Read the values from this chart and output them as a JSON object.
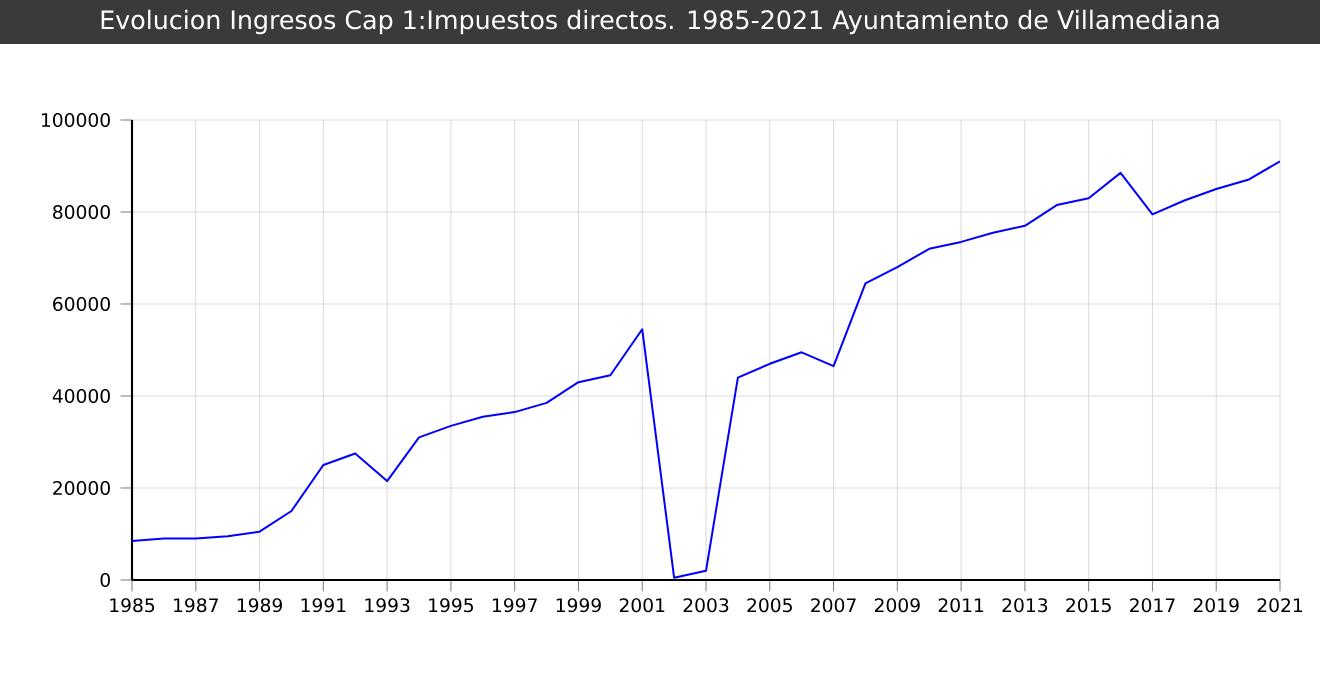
{
  "chart_data": {
    "type": "line",
    "title": "Evolucion Ingresos Cap 1:Impuestos directos. 1985-2021 Ayuntamiento de Villamediana",
    "x": [
      1985,
      1986,
      1987,
      1988,
      1989,
      1990,
      1991,
      1992,
      1993,
      1994,
      1995,
      1996,
      1997,
      1998,
      1999,
      2000,
      2001,
      2002,
      2003,
      2004,
      2005,
      2006,
      2007,
      2008,
      2009,
      2010,
      2011,
      2012,
      2013,
      2014,
      2015,
      2016,
      2017,
      2018,
      2019,
      2020,
      2021
    ],
    "series": [
      {
        "color": "#0000ff",
        "values": [
          8500,
          9000,
          9000,
          9500,
          10500,
          15000,
          25000,
          27500,
          21500,
          31000,
          33500,
          35500,
          36500,
          38500,
          43000,
          44500,
          54500,
          500,
          2000,
          44000,
          47000,
          49500,
          46500,
          64500,
          68000,
          72000,
          73500,
          75500,
          77000,
          81500,
          83000,
          88500,
          79500,
          82500,
          85000,
          87000,
          91000
        ]
      }
    ],
    "xlim": [
      1985,
      2021
    ],
    "xticks": [
      1985,
      1987,
      1989,
      1991,
      1993,
      1995,
      1997,
      1999,
      2001,
      2003,
      2005,
      2007,
      2009,
      2011,
      2013,
      2015,
      2017,
      2019,
      2021
    ],
    "ylim": [
      0,
      100000
    ],
    "yticks": [
      0,
      20000,
      40000,
      60000,
      80000,
      100000
    ],
    "grid": true,
    "marker": "none",
    "line_style": "solid"
  }
}
